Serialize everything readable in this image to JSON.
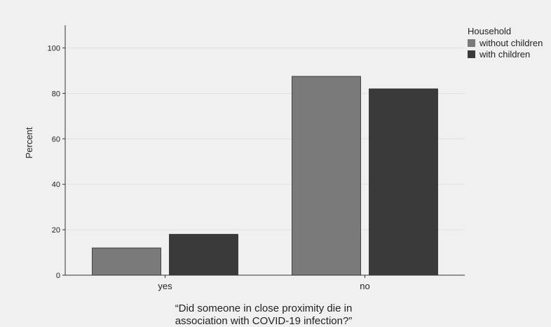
{
  "chart_data": {
    "type": "bar",
    "categories": [
      "yes",
      "no"
    ],
    "series": [
      {
        "name": "without children",
        "values": [
          12,
          87.5
        ],
        "color": "#7a7a7a"
      },
      {
        "name": "with children",
        "values": [
          18,
          82
        ],
        "color": "#3a3a3a"
      }
    ],
    "ylabel": "Percent",
    "xlabel_lines": [
      "“Did someone in close proximity die in",
      "association with COVID-19 infection?”"
    ],
    "ylim": [
      0,
      110
    ],
    "yticks": [
      0,
      20,
      40,
      60,
      80,
      100
    ],
    "grid": true,
    "legend": {
      "title": "Household",
      "position": "top-right"
    }
  }
}
